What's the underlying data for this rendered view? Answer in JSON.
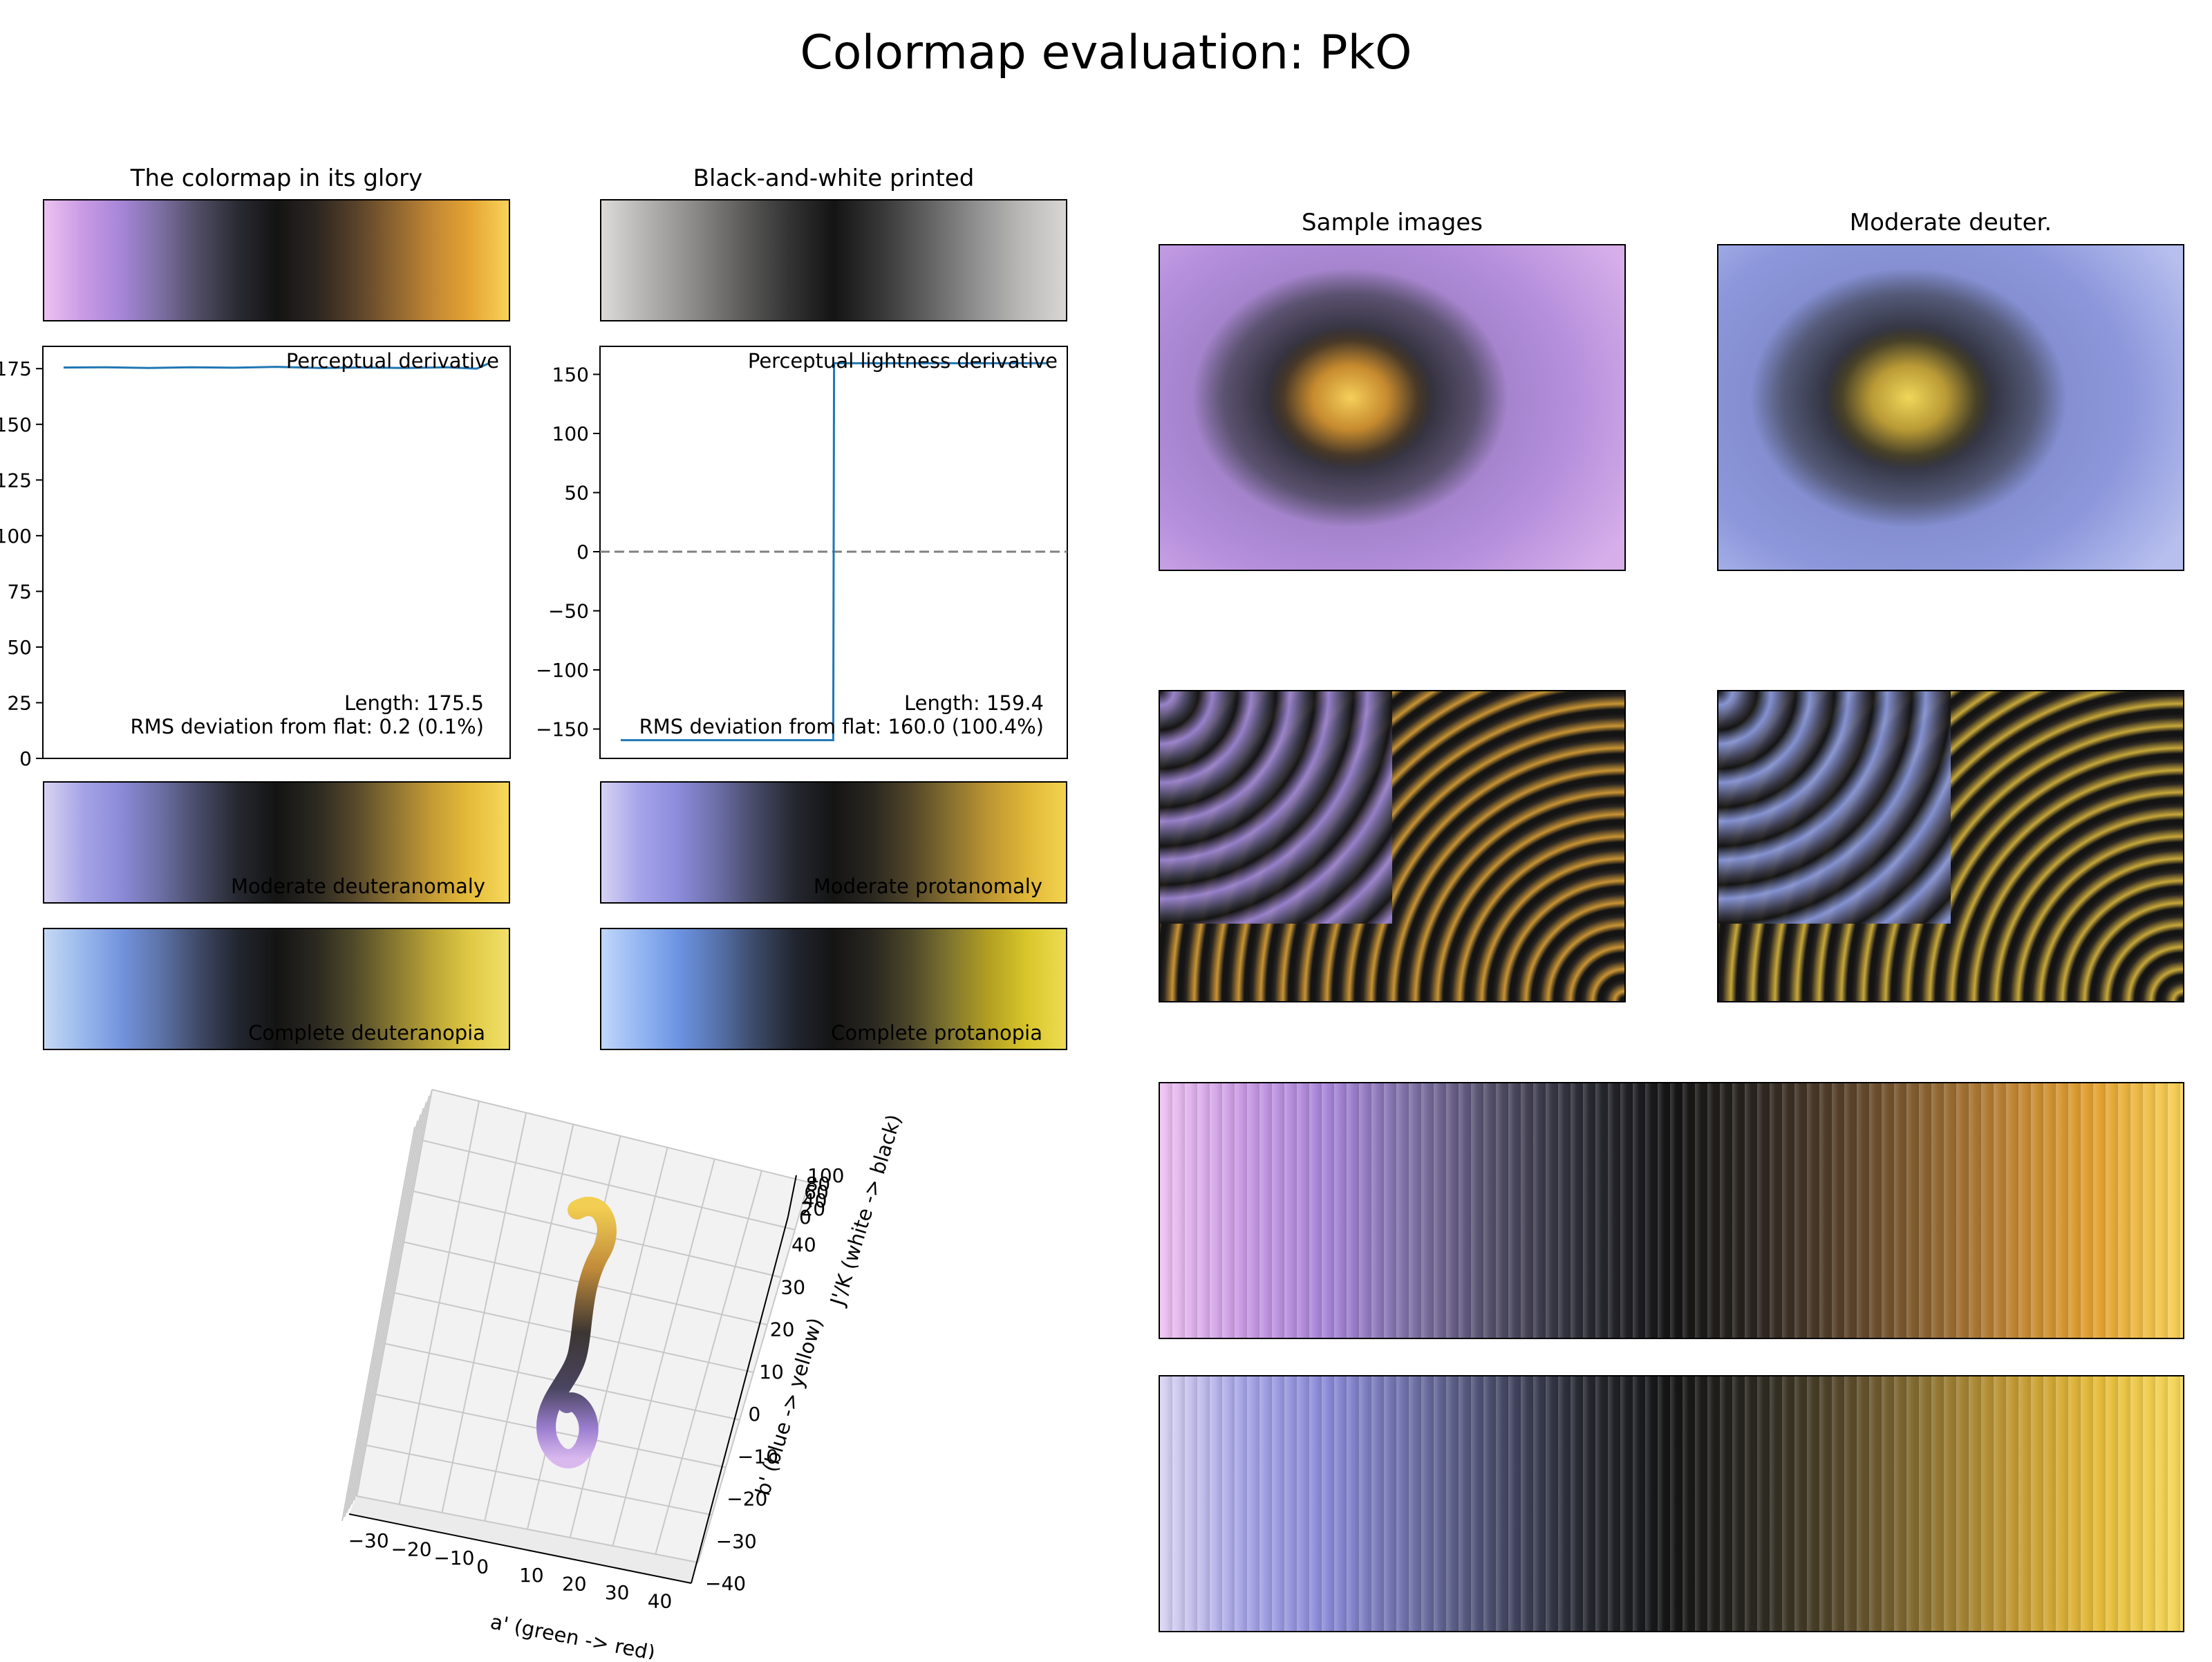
{
  "title": "Colormap evaluation: PkO",
  "colors": {
    "cmap": [
      "#edc2f1",
      "#c99ae4",
      "#a685d8",
      "#7c6fa3",
      "#4f4c63",
      "#2a2a33",
      "#141414",
      "#2b2520",
      "#56402a",
      "#8a6230",
      "#c08634",
      "#e6a433",
      "#f8d35a"
    ],
    "gray": [
      "#dcdad9",
      "#b3b1b0",
      "#8b8a89",
      "#5f5e5d",
      "#353535",
      "#141414",
      "#363636",
      "#606060",
      "#8d8d8d",
      "#b8b7b6",
      "#d9d7d6"
    ],
    "deuteranomaly": [
      "#d8d3f2",
      "#a6a4e6",
      "#8a8ad8",
      "#6c6fa4",
      "#474a66",
      "#25282f",
      "#141414",
      "#2a2820",
      "#55472a",
      "#8c7232",
      "#c39a35",
      "#e6bc3a",
      "#f6d95c"
    ],
    "protanomaly": [
      "#d6d2f4",
      "#a5a3e9",
      "#8b8bdb",
      "#6b6ea6",
      "#464965",
      "#24272f",
      "#141414",
      "#29271f",
      "#524629",
      "#866f30",
      "#bd9533",
      "#e0b737",
      "#f3d34f"
    ],
    "deuteranopia": [
      "#c6d8f4",
      "#98b8ec",
      "#7393de",
      "#5d73a8",
      "#3f4966",
      "#22262f",
      "#141414",
      "#2a2820",
      "#504a2a",
      "#857631",
      "#b9a336",
      "#dfc944",
      "#f1e06a"
    ],
    "protanopia": [
      "#c2d6fa",
      "#93b6f2",
      "#6c93e2",
      "#5672ac",
      "#3b4866",
      "#21252f",
      "#141414",
      "#292720",
      "#4d4729",
      "#7f7530",
      "#b29f22",
      "#d9c62b",
      "#eddc52"
    ],
    "line": "#1f77b4",
    "dashed": "#808080"
  },
  "panels": {
    "glory": "The colormap in its glory",
    "bw": "Black-and-white printed",
    "samples": "Sample images",
    "moderate_deuter": "Moderate deuter.",
    "deuteranomaly": "Moderate deuteranomaly",
    "protanomaly": "Moderate protanomaly",
    "deuteranopia": "Complete deuteranopia",
    "protanopia": "Complete protanopia"
  },
  "chart_data": [
    {
      "type": "line",
      "title": "Perceptual derivative",
      "x": [
        0,
        0.1,
        0.2,
        0.3,
        0.4,
        0.5,
        0.6,
        0.7,
        0.8,
        0.9,
        0.97,
        1.0
      ],
      "series": [
        {
          "values": [
            175.5,
            175.6,
            175.3,
            175.6,
            175.4,
            175.8,
            175.3,
            175.5,
            175.3,
            175.6,
            175.0,
            177.5
          ]
        }
      ],
      "ylim": [
        0,
        185
      ],
      "yticks": [
        "0",
        "25",
        "50",
        "75",
        "100",
        "125",
        "150",
        "175"
      ],
      "annotations": [
        "Length: 175.5",
        "RMS deviation from flat: 0.2 (0.1%)"
      ]
    },
    {
      "type": "line",
      "title": "Perceptual lightness derivative",
      "x": [
        0,
        0.499,
        0.501,
        1.0
      ],
      "series": [
        {
          "values": [
            -159.4,
            -159.4,
            159.4,
            159.4
          ]
        }
      ],
      "ylim": [
        -160,
        160
      ],
      "yticks": [
        "150",
        "100",
        "50",
        "0",
        "−50",
        "−100",
        "−150"
      ],
      "hline": 0,
      "annotations": [
        "Length: 159.4",
        "RMS deviation from flat: 160.0 (100.4%)"
      ]
    },
    {
      "type": "scatter",
      "x_label": "a' (green -> red)",
      "y_label": "b' (blue -> yellow)",
      "z_label": "J'/K (white -> black)",
      "x_ticks": [
        "−30",
        "−20",
        "−10",
        "0",
        "10",
        "20",
        "30",
        "40"
      ],
      "y_ticks": [
        "−40",
        "−30",
        "−20",
        "−10",
        "0",
        "10",
        "20",
        "30",
        "40"
      ],
      "z_ticks": [
        "0",
        "20",
        "40",
        "60",
        "80",
        "100"
      ]
    }
  ]
}
